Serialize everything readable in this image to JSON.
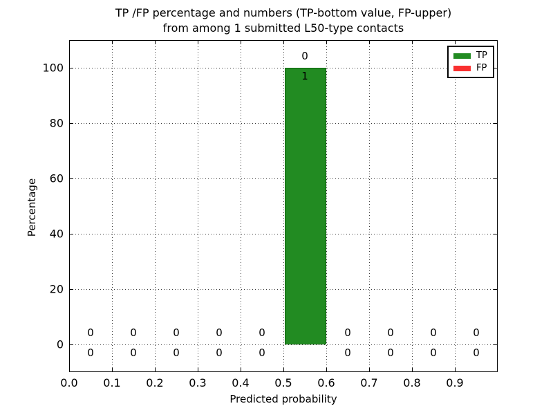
{
  "title": {
    "line1": "TP /FP percentage and numbers (TP-bottom value, FP-upper)",
    "line2": "from among 1 submitted L50-type contacts"
  },
  "chart_data": {
    "type": "bar",
    "stacked": true,
    "title": "TP /FP percentage and numbers (TP-bottom value, FP-upper) from among 1 submitted L50-type contacts",
    "xlabel": "Predicted probability",
    "ylabel": "Percentage",
    "xlim": [
      0.0,
      1.0
    ],
    "ylim": [
      -10,
      110
    ],
    "x_tick_labels": [
      "0.0",
      "0.1",
      "0.2",
      "0.3",
      "0.4",
      "0.5",
      "0.6",
      "0.7",
      "0.8",
      "0.9"
    ],
    "x_ticks": [
      0.0,
      0.1,
      0.2,
      0.3,
      0.4,
      0.5,
      0.6,
      0.7,
      0.8,
      0.9
    ],
    "y_tick_labels": [
      "0",
      "20",
      "40",
      "60",
      "80",
      "100"
    ],
    "y_ticks": [
      0,
      20,
      40,
      60,
      80,
      100
    ],
    "grid": "dotted",
    "grid_color": "#3a3a3a",
    "bins": [
      {
        "range": [
          0.0,
          0.1
        ],
        "tp_count": 0,
        "fp_count": 0,
        "tp_pct": 0,
        "fp_pct": 0
      },
      {
        "range": [
          0.1,
          0.2
        ],
        "tp_count": 0,
        "fp_count": 0,
        "tp_pct": 0,
        "fp_pct": 0
      },
      {
        "range": [
          0.2,
          0.3
        ],
        "tp_count": 0,
        "fp_count": 0,
        "tp_pct": 0,
        "fp_pct": 0
      },
      {
        "range": [
          0.3,
          0.4
        ],
        "tp_count": 0,
        "fp_count": 0,
        "tp_pct": 0,
        "fp_pct": 0
      },
      {
        "range": [
          0.4,
          0.5
        ],
        "tp_count": 0,
        "fp_count": 0,
        "tp_pct": 0,
        "fp_pct": 0
      },
      {
        "range": [
          0.5,
          0.6
        ],
        "tp_count": 1,
        "fp_count": 0,
        "tp_pct": 100,
        "fp_pct": 0
      },
      {
        "range": [
          0.6,
          0.7
        ],
        "tp_count": 0,
        "fp_count": 0,
        "tp_pct": 0,
        "fp_pct": 0
      },
      {
        "range": [
          0.7,
          0.8
        ],
        "tp_count": 0,
        "fp_count": 0,
        "tp_pct": 0,
        "fp_pct": 0
      },
      {
        "range": [
          0.8,
          0.9
        ],
        "tp_count": 0,
        "fp_count": 0,
        "tp_pct": 0,
        "fp_pct": 0
      },
      {
        "range": [
          0.9,
          1.0
        ],
        "tp_count": 0,
        "fp_count": 0,
        "tp_pct": 0,
        "fp_pct": 0
      }
    ],
    "series": [
      {
        "name": "TP",
        "color": "#228b22",
        "edge_color": "#0d650d",
        "values_pct": [
          0,
          0,
          0,
          0,
          0,
          100,
          0,
          0,
          0,
          0
        ]
      },
      {
        "name": "FP",
        "color": "#f93030",
        "edge_color": "#a31212",
        "values_pct": [
          0,
          0,
          0,
          0,
          0,
          0,
          0,
          0,
          0,
          0
        ]
      }
    ],
    "legend": {
      "position": "upper right",
      "entries": [
        {
          "label": "TP",
          "color": "#228b22"
        },
        {
          "label": "FP",
          "color": "#f93030"
        }
      ]
    }
  }
}
